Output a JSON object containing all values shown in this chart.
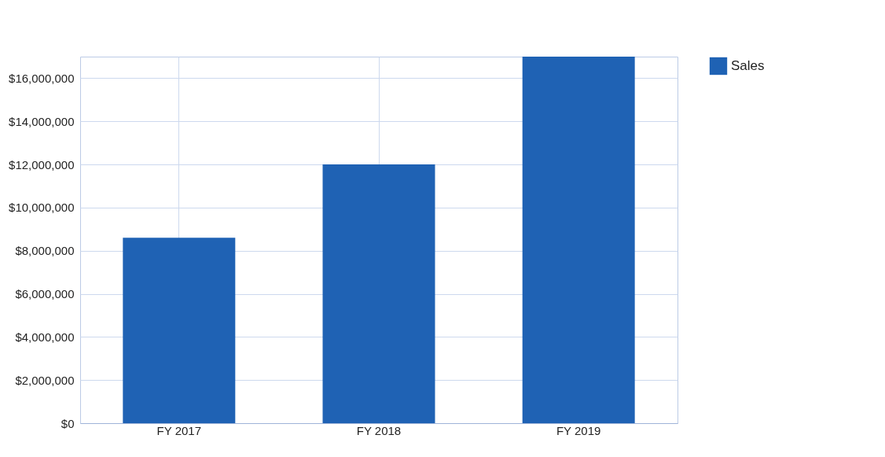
{
  "chart_data": {
    "type": "bar",
    "categories": [
      "FY 2017",
      "FY 2018",
      "FY 2019"
    ],
    "series": [
      {
        "name": "Sales",
        "color": "#1f62b4",
        "values": [
          8600000,
          12000000,
          17000000
        ]
      }
    ],
    "ylim": [
      0,
      17000000
    ],
    "yticks": [
      {
        "value": 0,
        "label": "$0"
      },
      {
        "value": 2000000,
        "label": "$2,000,000"
      },
      {
        "value": 4000000,
        "label": "$4,000,000"
      },
      {
        "value": 6000000,
        "label": "$6,000,000"
      },
      {
        "value": 8000000,
        "label": "$8,000,000"
      },
      {
        "value": 10000000,
        "label": "$10,000,000"
      },
      {
        "value": 12000000,
        "label": "$12,000,000"
      },
      {
        "value": 14000000,
        "label": "$14,000,000"
      },
      {
        "value": 16000000,
        "label": "$16,000,000"
      }
    ],
    "grid": true,
    "legend": "right"
  }
}
